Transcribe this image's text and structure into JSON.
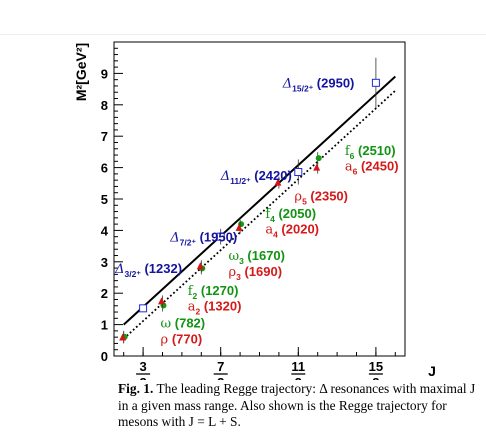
{
  "chart_data": {
    "type": "scatter",
    "xlabel": "J",
    "ylabel": "M²[GeV²]",
    "xlim": [
      0.75,
      8.25
    ],
    "ylim": [
      0,
      10
    ],
    "x_ticks": [
      {
        "x": 1.5,
        "num": "3",
        "den": "2"
      },
      {
        "x": 3.5,
        "num": "7",
        "den": "2"
      },
      {
        "x": 5.5,
        "num": "11",
        "den": "2"
      },
      {
        "x": 7.5,
        "num": "15",
        "den": "2"
      }
    ],
    "y_ticks": [
      0,
      1,
      2,
      3,
      4,
      5,
      6,
      7,
      8,
      9
    ],
    "series": [
      {
        "marker": "open-square",
        "color": "#1f2bd8",
        "points": [
          {
            "x": 1.5,
            "y": 1.518,
            "err": 0.0
          },
          {
            "x": 3.5,
            "y": 3.8,
            "err": 0.25
          },
          {
            "x": 5.5,
            "y": 5.86,
            "err": 0.4
          },
          {
            "x": 7.5,
            "y": 8.7,
            "err": 0.8
          }
        ]
      },
      {
        "marker": "filled-circle",
        "color": "#139b13",
        "points": [
          {
            "x": 1.0,
            "y": 0.61
          },
          {
            "x": 2.0,
            "y": 1.61
          },
          {
            "x": 3.0,
            "y": 2.79
          },
          {
            "x": 4.0,
            "y": 4.2
          },
          {
            "x": 6.0,
            "y": 6.3
          }
        ]
      },
      {
        "marker": "filled-triangle",
        "color": "#d61414",
        "points": [
          {
            "x": 1.0,
            "y": 0.59
          },
          {
            "x": 2.0,
            "y": 1.74
          },
          {
            "x": 3.0,
            "y": 2.86
          },
          {
            "x": 4.0,
            "y": 4.08
          },
          {
            "x": 5.0,
            "y": 5.52
          },
          {
            "x": 6.0,
            "y": 6.0
          }
        ]
      }
    ],
    "lines": [
      {
        "style": "solid",
        "x": [
          1.0,
          8.0
        ],
        "y": [
          1.0,
          8.9
        ]
      },
      {
        "style": "dotted",
        "x": [
          1.0,
          8.0
        ],
        "y": [
          0.55,
          8.45
        ]
      }
    ],
    "annotations": [
      {
        "name": "Δ",
        "sub": "15/2⁺",
        "mass": "(2950)",
        "color": "#1414a0",
        "x": 5.1,
        "y": 8.55
      },
      {
        "name": "Δ",
        "sub": "11/2⁺",
        "mass": "(2420)",
        "color": "#1414a0",
        "x": 3.5,
        "y": 5.6
      },
      {
        "name": "Δ",
        "sub": "7/2⁺",
        "mass": "(1950)",
        "color": "#1414a0",
        "x": 2.2,
        "y": 3.65
      },
      {
        "name": "Δ",
        "sub": "3/2⁺",
        "mass": "(1232)",
        "color": "#1414a0",
        "x": 0.78,
        "y": 2.65
      },
      {
        "name": "f",
        "sub": "6",
        "mass": "(2510)",
        "color": "#129412",
        "x": 6.7,
        "y": 6.4
      },
      {
        "name": "a",
        "sub": "6",
        "mass": "(2450)",
        "color": "#d41a1a",
        "x": 6.7,
        "y": 5.9
      },
      {
        "name": "ρ",
        "sub": "5",
        "mass": "(2350)",
        "color": "#d41a1a",
        "x": 5.4,
        "y": 4.95
      },
      {
        "name": "f",
        "sub": "4",
        "mass": "(2050)",
        "color": "#129412",
        "x": 4.65,
        "y": 4.4
      },
      {
        "name": "a",
        "sub": "4",
        "mass": "(2020)",
        "color": "#d41a1a",
        "x": 4.65,
        "y": 3.9
      },
      {
        "name": "ω",
        "sub": "3",
        "mass": "(1670)",
        "color": "#129412",
        "x": 3.7,
        "y": 3.05
      },
      {
        "name": "ρ",
        "sub": "3",
        "mass": "(1690)",
        "color": "#d41a1a",
        "x": 3.7,
        "y": 2.55
      },
      {
        "name": "f",
        "sub": "2",
        "mass": "(1270)",
        "color": "#129412",
        "x": 2.65,
        "y": 1.95
      },
      {
        "name": "a",
        "sub": "2",
        "mass": "(1320)",
        "color": "#d41a1a",
        "x": 2.65,
        "y": 1.45
      },
      {
        "name": "ω",
        "sub": "",
        "mass": "(782)",
        "color": "#129412",
        "x": 1.95,
        "y": 0.9
      },
      {
        "name": "ρ",
        "sub": "",
        "mass": "(770)",
        "color": "#d41a1a",
        "x": 1.95,
        "y": 0.4
      }
    ]
  },
  "caption": {
    "fig_label": "Fig. 1.",
    "text": "The leading Regge trajectory: Δ resonances with maximal J in a given mass range. Also shown is the Regge trajectory for mesons with J = L + S."
  }
}
